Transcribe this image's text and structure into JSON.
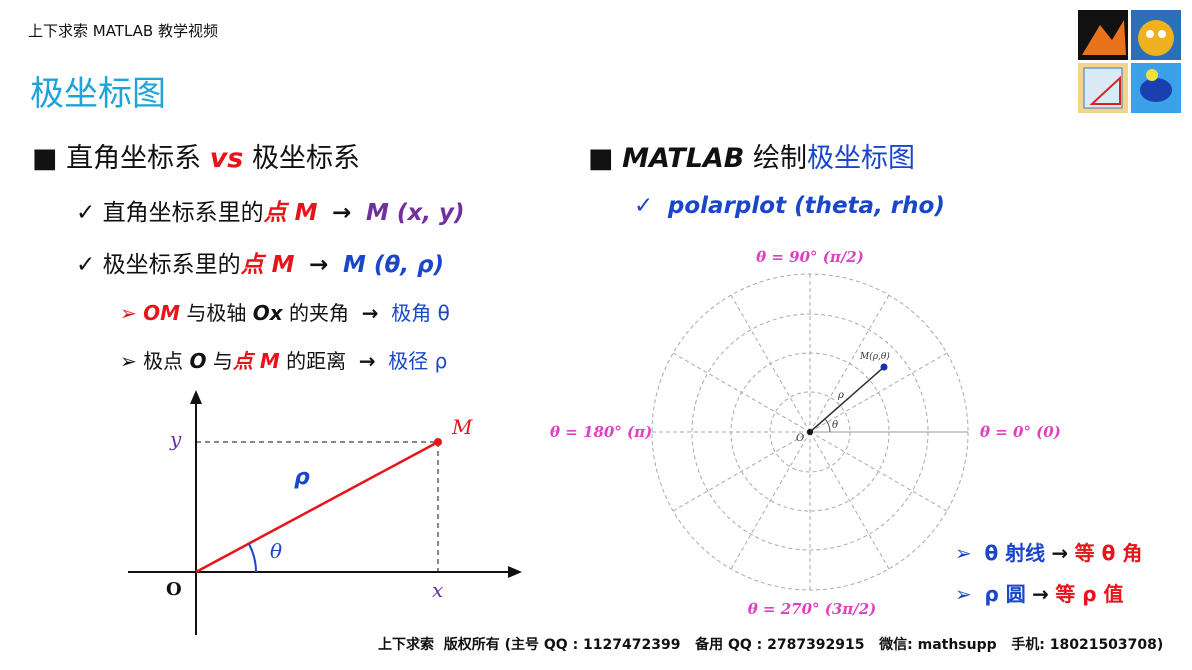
{
  "header": "上下求索 MATLAB 教学视频",
  "title": "极坐标图",
  "left": {
    "heading": [
      "直角坐标系",
      "vs",
      "极坐标系"
    ],
    "items": [
      [
        "直角坐标系里的",
        "点 M",
        "M (x, y)"
      ],
      [
        "极坐标系里的",
        "点 M",
        "M (θ, ρ)"
      ]
    ],
    "subitems": [
      [
        "OM",
        "与极轴",
        "Ox",
        "的夹角",
        "极角 θ"
      ],
      [
        "极点",
        "O",
        "与",
        "点 M",
        "的距离",
        "极径 ρ"
      ]
    ]
  },
  "diagram": {
    "y": "y",
    "M": "M",
    "rho": "ρ",
    "theta": "θ",
    "O": "O",
    "x": "x"
  },
  "right": {
    "heading": [
      "MATLAB",
      "绘制",
      "极坐标图"
    ],
    "item": "polarplot (theta, rho)",
    "polar": {
      "top": "θ = 90° (π/2)",
      "left": "θ = 180° (π)",
      "right": "θ = 0° (0)",
      "bottom": "θ = 270° (3π/2)",
      "point": "M(ρ,θ)",
      "rho": "ρ",
      "theta": "θ",
      "origin": "O"
    },
    "notes": [
      [
        "θ 射线",
        "等 θ 角"
      ],
      [
        "ρ 圆",
        "等 ρ 值"
      ]
    ]
  },
  "footer": "上下求索  版权所有 (主号 QQ : 1127472399   备用 QQ : 2787392915   微信: mathsupp   手机: 18021503708)"
}
